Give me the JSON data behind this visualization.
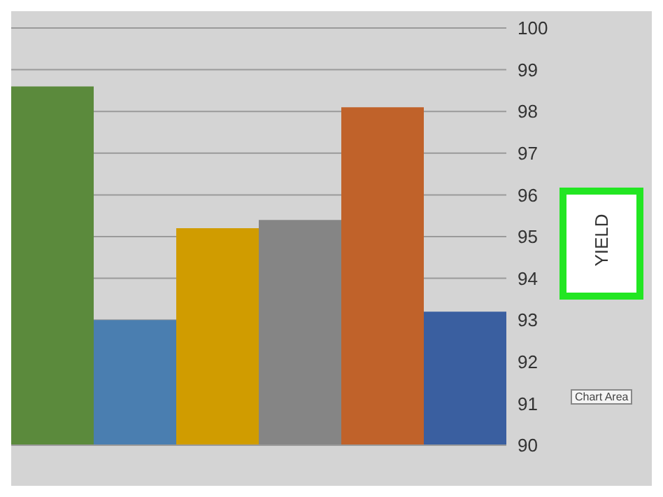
{
  "chart_data": {
    "type": "bar",
    "ylabel": "YIELD",
    "categories": [
      null,
      null,
      null,
      null,
      null,
      null
    ],
    "values": [
      98.6,
      93.0,
      95.2,
      95.4,
      98.1,
      93.2
    ],
    "colors": [
      "#5b8a3c",
      "#4a7eb0",
      "#d09c00",
      "#858585",
      "#c0622a",
      "#3a5fa0"
    ],
    "ylim": [
      90,
      100
    ],
    "yticks": [
      90,
      91,
      92,
      93,
      94,
      95,
      96,
      97,
      98,
      99,
      100
    ],
    "grid": "y",
    "annotations": [
      "Chart Area"
    ]
  }
}
